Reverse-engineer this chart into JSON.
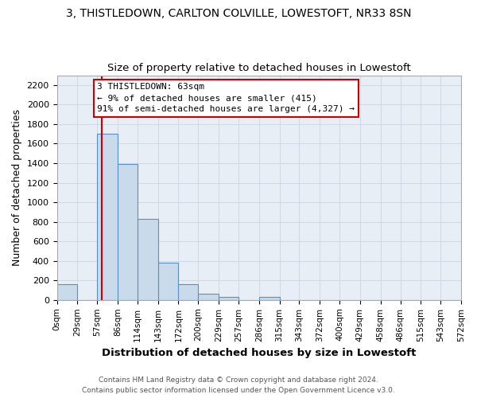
{
  "title": "3, THISTLEDOWN, CARLTON COLVILLE, LOWESTOFT, NR33 8SN",
  "subtitle": "Size of property relative to detached houses in Lowestoft",
  "xlabel": "Distribution of detached houses by size in Lowestoft",
  "ylabel": "Number of detached properties",
  "bar_edges": [
    0,
    29,
    57,
    86,
    114,
    143,
    172,
    200,
    229,
    257,
    286,
    315,
    343,
    372,
    400,
    429,
    458,
    486,
    515,
    543,
    572
  ],
  "bar_heights": [
    160,
    0,
    1700,
    1390,
    830,
    380,
    160,
    60,
    30,
    0,
    30,
    0,
    0,
    0,
    0,
    0,
    0,
    0,
    0,
    0
  ],
  "bar_color": "#c9daea",
  "bar_edge_color": "#5b8fc7",
  "grid_color": "#d0d8e4",
  "tick_labels": [
    "0sqm",
    "29sqm",
    "57sqm",
    "86sqm",
    "114sqm",
    "143sqm",
    "172sqm",
    "200sqm",
    "229sqm",
    "257sqm",
    "286sqm",
    "315sqm",
    "343sqm",
    "372sqm",
    "400sqm",
    "429sqm",
    "458sqm",
    "486sqm",
    "515sqm",
    "543sqm",
    "572sqm"
  ],
  "ylim": [
    0,
    2300
  ],
  "yticks": [
    0,
    200,
    400,
    600,
    800,
    1000,
    1200,
    1400,
    1600,
    1800,
    2000,
    2200
  ],
  "property_line_x": 63,
  "property_line_color": "#cc0000",
  "annotation_text": "3 THISTLEDOWN: 63sqm\n← 9% of detached houses are smaller (415)\n91% of semi-detached houses are larger (4,327) →",
  "annotation_box_color": "#ffffff",
  "annotation_box_edge": "#cc0000",
  "footer_line1": "Contains HM Land Registry data © Crown copyright and database right 2024.",
  "footer_line2": "Contains public sector information licensed under the Open Government Licence v3.0.",
  "background_color": "#ffffff",
  "plot_bg_color": "#e8eef5"
}
